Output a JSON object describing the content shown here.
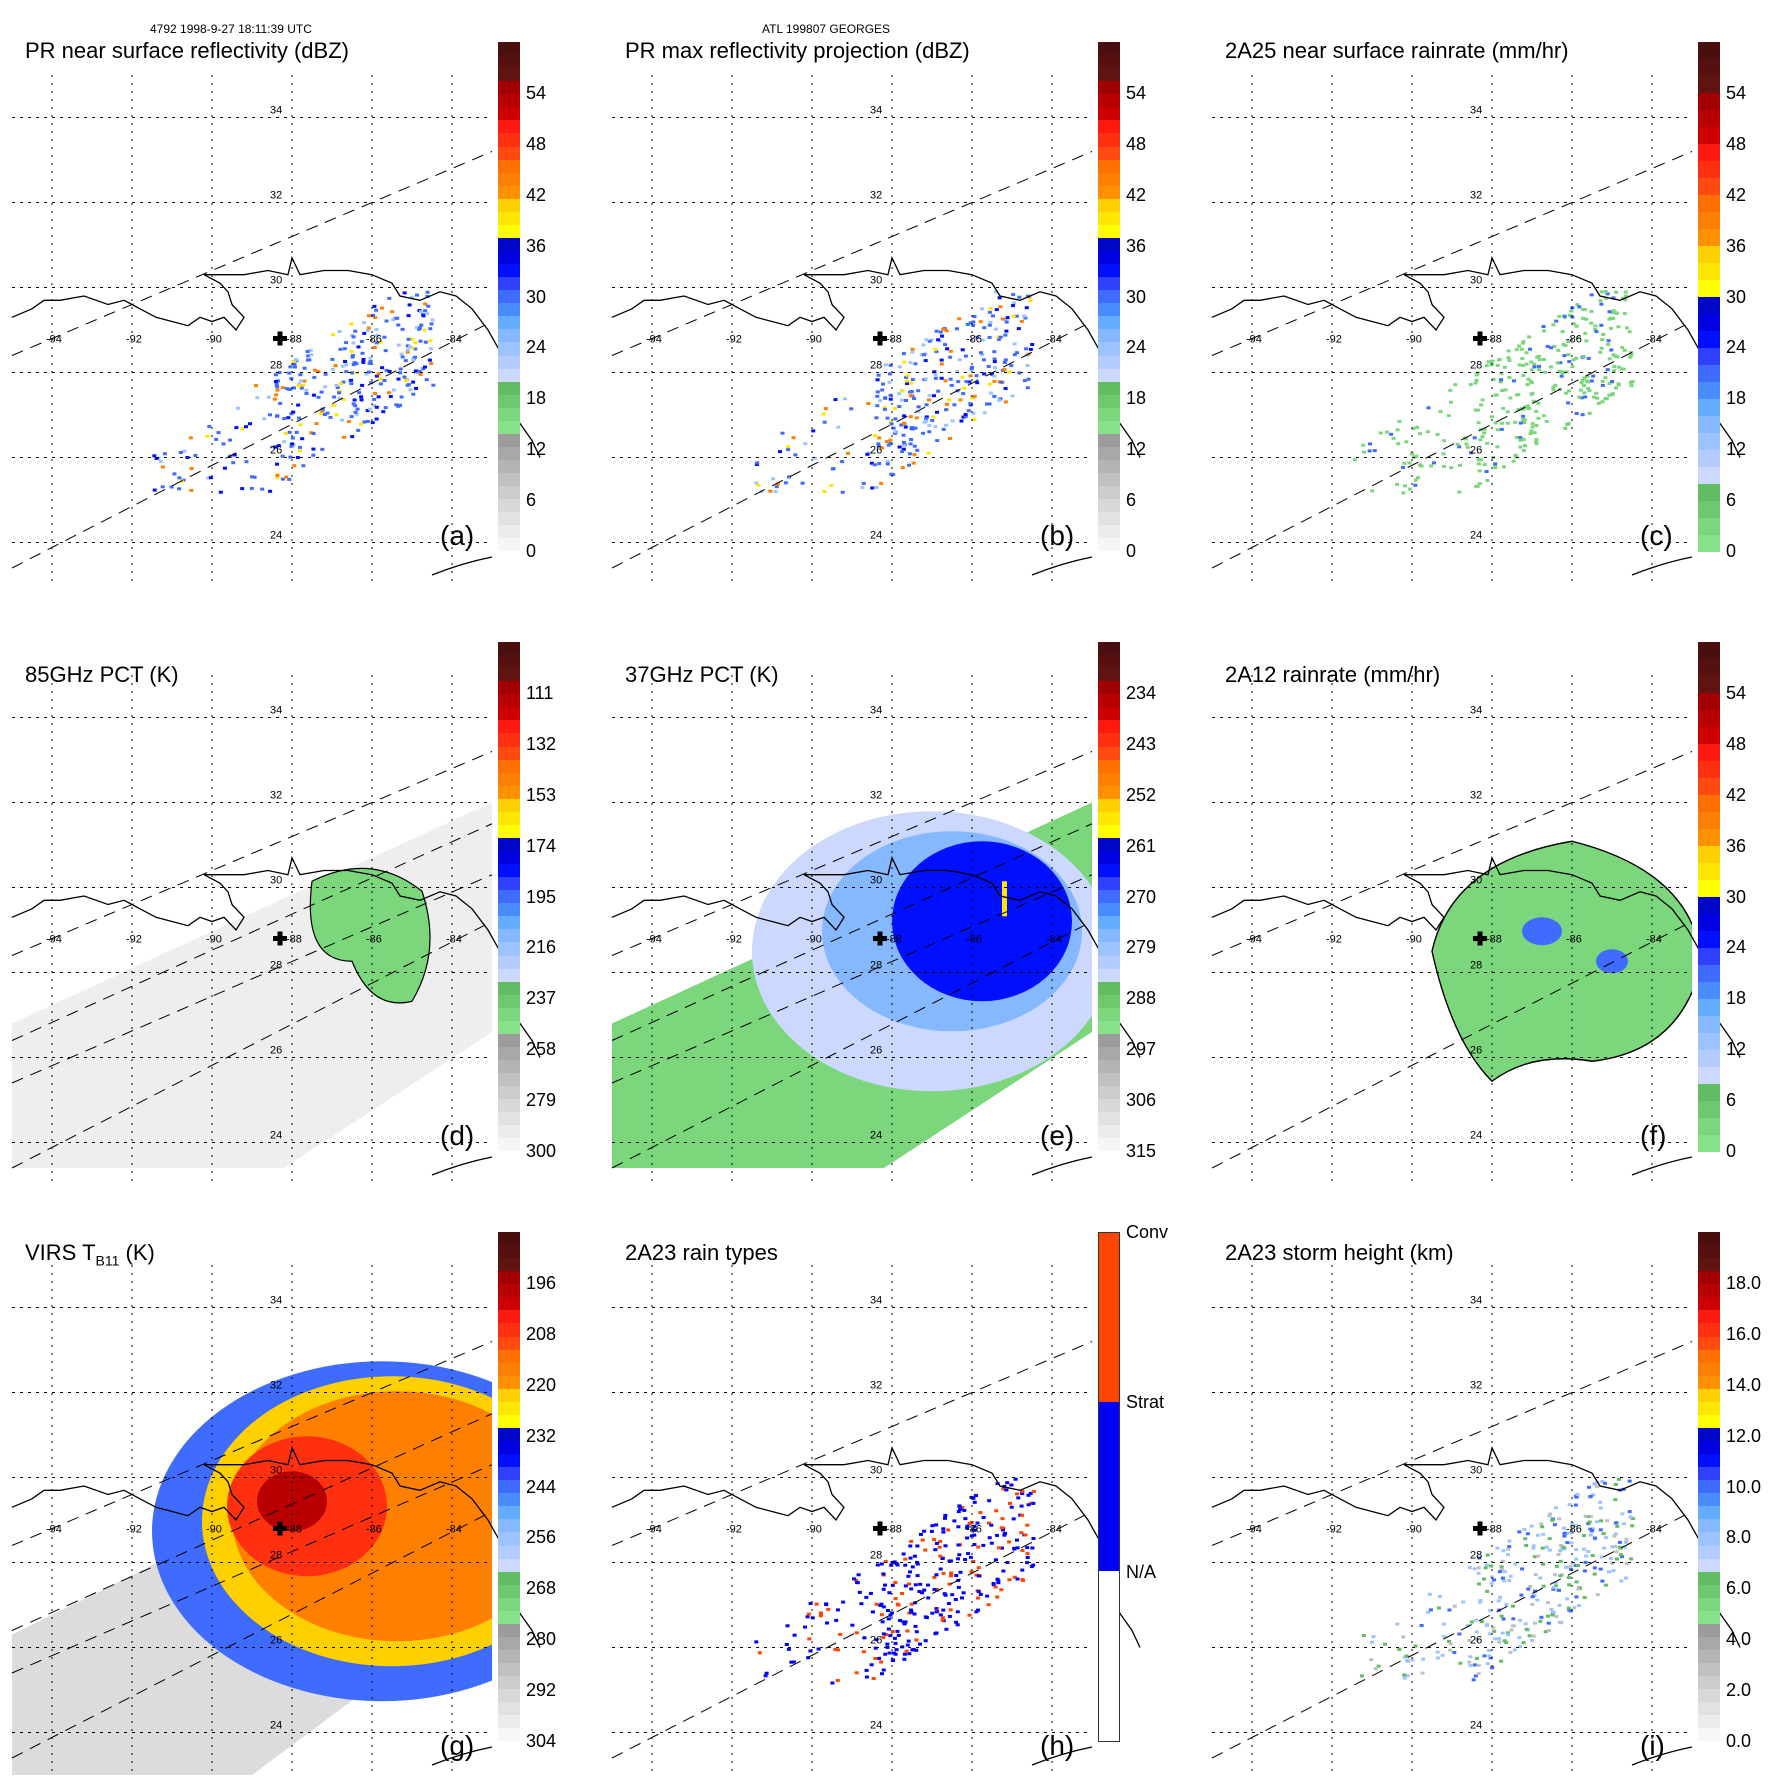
{
  "header": {
    "left": "4792 1998-9-27 18:11:39 UTC",
    "center": "ATL 199807 GEORGES"
  },
  "storm_center": {
    "lon": -88.3,
    "lat": 28.8,
    "marker": "plus-icon"
  },
  "map": {
    "lon_ticks": [
      "-94",
      "-92",
      "-90",
      "-88",
      "-86",
      "-84"
    ],
    "lat_ticks": [
      "34",
      "32",
      "30",
      "28",
      "26",
      "24"
    ],
    "lon_range": [
      -95,
      -83
    ],
    "lat_range": [
      23,
      35
    ]
  },
  "colors": {
    "dark_red": "#5a1010",
    "red": "#c00000",
    "red_orange": "#ff3010",
    "orange": "#ff8000",
    "yellow": "#ffe000",
    "blue": "#0010e0",
    "mid_blue": "#3f6cff",
    "light_blue": "#8ec0ff",
    "pale_blue": "#cdd8ff",
    "green": "#7cd67c",
    "gray": "#a0a0a0",
    "light_gray": "#e0e0e0",
    "conv": "#ff4500",
    "strat": "#0000ff",
    "na": "#ffffff"
  },
  "panels": [
    {
      "id": "a",
      "title": "PR near surface reflectivity (dBZ)",
      "label": "(a)",
      "colorbar": {
        "type": "continuous",
        "ticks": [
          "54",
          "48",
          "42",
          "36",
          "30",
          "24",
          "18",
          "12",
          "6",
          "0"
        ]
      }
    },
    {
      "id": "b",
      "title": "PR max reflectivity projection (dBZ)",
      "label": "(b)",
      "colorbar": {
        "type": "continuous",
        "ticks": [
          "54",
          "48",
          "42",
          "36",
          "30",
          "24",
          "18",
          "12",
          "6",
          "0"
        ]
      }
    },
    {
      "id": "c",
      "title": "2A25 near surface rainrate (mm/hr)",
      "label": "(c)",
      "colorbar": {
        "type": "rain",
        "ticks": [
          "54",
          "48",
          "42",
          "36",
          "30",
          "24",
          "18",
          "12",
          "6",
          "0"
        ]
      }
    },
    {
      "id": "d",
      "title": "85GHz PCT (K)",
      "label": "(d)",
      "colorbar": {
        "type": "continuous",
        "ticks": [
          "111",
          "132",
          "153",
          "174",
          "195",
          "216",
          "237",
          "258",
          "279",
          "300"
        ]
      }
    },
    {
      "id": "e",
      "title": "37GHz PCT (K)",
      "label": "(e)",
      "colorbar": {
        "type": "continuous",
        "ticks": [
          "234",
          "243",
          "252",
          "261",
          "270",
          "279",
          "288",
          "297",
          "306",
          "315"
        ]
      }
    },
    {
      "id": "f",
      "title": "2A12 rainrate (mm/hr)",
      "label": "(f)",
      "colorbar": {
        "type": "rain",
        "ticks": [
          "54",
          "48",
          "42",
          "36",
          "30",
          "24",
          "18",
          "12",
          "6",
          "0"
        ]
      }
    },
    {
      "id": "g",
      "title": "VIRS T",
      "title_sub": "B11",
      "title_suffix": " (K)",
      "label": "(g)",
      "colorbar": {
        "type": "continuous",
        "ticks": [
          "196",
          "208",
          "220",
          "232",
          "244",
          "256",
          "268",
          "280",
          "292",
          "304"
        ]
      }
    },
    {
      "id": "h",
      "title": "2A23 rain types",
      "label": "(h)",
      "colorbar": {
        "type": "categorical",
        "ticks": [
          "Conv",
          "Strat",
          "N/A"
        ]
      }
    },
    {
      "id": "i",
      "title": "2A23 storm height (km)",
      "label": "(i)",
      "colorbar": {
        "type": "continuous",
        "ticks": [
          "18.0",
          "16.0",
          "14.0",
          "12.0",
          "10.0",
          "8.0",
          "6.0",
          "4.0",
          "2.0",
          "0.0"
        ]
      }
    }
  ]
}
